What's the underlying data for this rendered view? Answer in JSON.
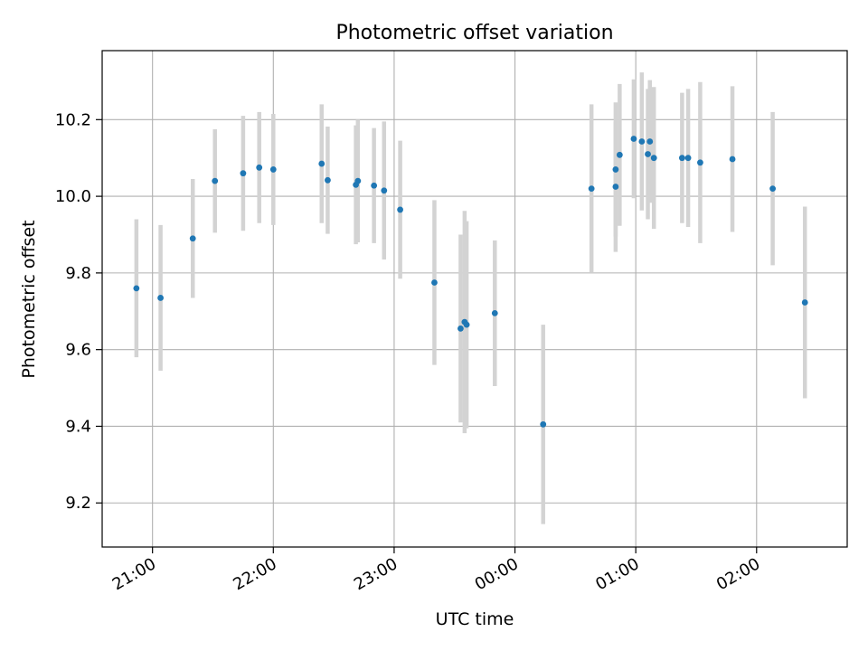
{
  "chart_data": {
    "type": "scatter",
    "title": "Photometric offset variation",
    "xlabel": "UTC time",
    "ylabel": "Photometric offset",
    "x_axis": {
      "kind": "time",
      "range": [
        "20:35",
        "02:45"
      ],
      "ticks": [
        {
          "time": "21:00",
          "label": "21:00"
        },
        {
          "time": "22:00",
          "label": "22:00"
        },
        {
          "time": "23:00",
          "label": "23:00"
        },
        {
          "time": "00:00",
          "label": "00:00"
        },
        {
          "time": "01:00",
          "label": "01:00"
        },
        {
          "time": "02:00",
          "label": "02:00"
        }
      ]
    },
    "y_axis": {
      "range": [
        9.085,
        10.38
      ],
      "ticks": [
        9.2,
        9.4,
        9.6,
        9.8,
        10.0,
        10.2
      ],
      "tick_labels": [
        "9.2",
        "9.4",
        "9.6",
        "9.8",
        "10.0",
        "10.2"
      ]
    },
    "grid": true,
    "colors": {
      "point": "#1f77b4",
      "errorbar": "#d3d3d3",
      "grid": "#b0b0b0",
      "axes": "#000000"
    },
    "series": [
      {
        "points": [
          {
            "time": "20:52",
            "y": 9.76,
            "yerr": 0.18
          },
          {
            "time": "21:04",
            "y": 9.735,
            "yerr": 0.19
          },
          {
            "time": "21:20",
            "y": 9.89,
            "yerr": 0.155
          },
          {
            "time": "21:31",
            "y": 10.04,
            "yerr": 0.135
          },
          {
            "time": "21:45",
            "y": 10.06,
            "yerr": 0.15
          },
          {
            "time": "21:53",
            "y": 10.075,
            "yerr": 0.145
          },
          {
            "time": "22:00",
            "y": 10.07,
            "yerr": 0.145
          },
          {
            "time": "22:24",
            "y": 10.085,
            "yerr": 0.155
          },
          {
            "time": "22:27",
            "y": 10.042,
            "yerr": 0.14
          },
          {
            "time": "22:41",
            "y": 10.03,
            "yerr": 0.155
          },
          {
            "time": "22:42",
            "y": 10.04,
            "yerr": 0.16
          },
          {
            "time": "22:50",
            "y": 10.028,
            "yerr": 0.15
          },
          {
            "time": "22:55",
            "y": 10.015,
            "yerr": 0.18
          },
          {
            "time": "23:03",
            "y": 9.965,
            "yerr": 0.18
          },
          {
            "time": "23:20",
            "y": 9.775,
            "yerr": 0.215
          },
          {
            "time": "23:33",
            "y": 9.655,
            "yerr": 0.245
          },
          {
            "time": "23:35",
            "y": 9.672,
            "yerr": 0.29
          },
          {
            "time": "23:36",
            "y": 9.665,
            "yerr": 0.27
          },
          {
            "time": "23:50",
            "y": 9.695,
            "yerr": 0.19
          },
          {
            "time": "00:14",
            "y": 9.405,
            "yerr": 0.26
          },
          {
            "time": "00:38",
            "y": 10.02,
            "yerr": 0.22
          },
          {
            "time": "00:50",
            "y": 10.025,
            "yerr": 0.17
          },
          {
            "time": "00:50",
            "y": 10.07,
            "yerr": 0.175
          },
          {
            "time": "00:52",
            "y": 10.108,
            "yerr": 0.185
          },
          {
            "time": "00:59",
            "y": 10.15,
            "yerr": 0.155
          },
          {
            "time": "01:03",
            "y": 10.143,
            "yerr": 0.18
          },
          {
            "time": "01:06",
            "y": 10.11,
            "yerr": 0.17
          },
          {
            "time": "01:07",
            "y": 10.143,
            "yerr": 0.16
          },
          {
            "time": "01:09",
            "y": 10.1,
            "yerr": 0.185
          },
          {
            "time": "01:23",
            "y": 10.1,
            "yerr": 0.17
          },
          {
            "time": "01:26",
            "y": 10.1,
            "yerr": 0.18
          },
          {
            "time": "01:32",
            "y": 10.088,
            "yerr": 0.21
          },
          {
            "time": "01:48",
            "y": 10.097,
            "yerr": 0.19
          },
          {
            "time": "02:08",
            "y": 10.02,
            "yerr": 0.2
          },
          {
            "time": "02:24",
            "y": 9.723,
            "yerr": 0.25
          }
        ]
      }
    ]
  }
}
